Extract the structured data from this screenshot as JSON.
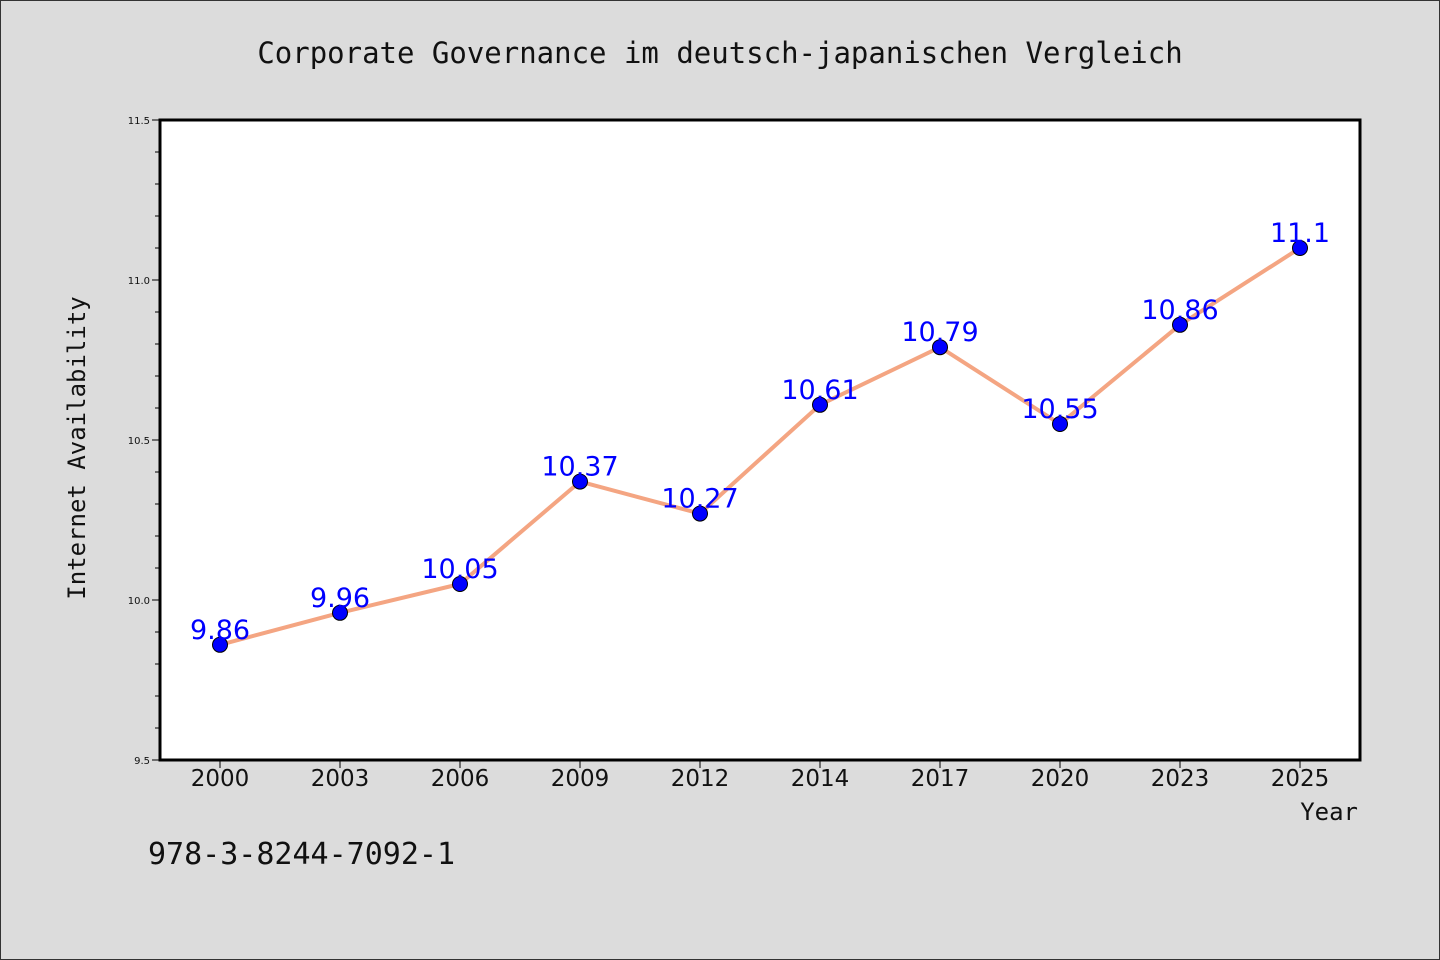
{
  "chart_data": {
    "type": "line",
    "title": "Corporate Governance im deutsch-japanischen Vergleich",
    "xlabel": "Year",
    "ylabel": "Internet Availability",
    "categories": [
      "2000",
      "2003",
      "2006",
      "2009",
      "2012",
      "2014",
      "2017",
      "2020",
      "2023",
      "2025"
    ],
    "series": [
      {
        "values": [
          9.86,
          9.96,
          10.05,
          10.37,
          10.27,
          10.61,
          10.79,
          10.55,
          10.86,
          11.1
        ],
        "data_labels": [
          "9.86",
          "9.96",
          "10.05",
          "10.37",
          "10.27",
          "10.61",
          "10.79",
          "10.55",
          "10.86",
          "11.1"
        ],
        "line_color": "#f4a582",
        "marker_color": "#0000ff"
      }
    ],
    "ylim": [
      9.5,
      11.5
    ],
    "yticks": [
      "9.5",
      "10.0",
      "10.5",
      "11.0",
      "11.5"
    ],
    "ytick_values": [
      9.5,
      10.0,
      10.5,
      11.0,
      11.5
    ],
    "minor_ytick_step": 0.1,
    "grid": false,
    "legend": "none",
    "label_color": "#0000ff"
  },
  "footer_text": "978-3-8244-7092-1"
}
